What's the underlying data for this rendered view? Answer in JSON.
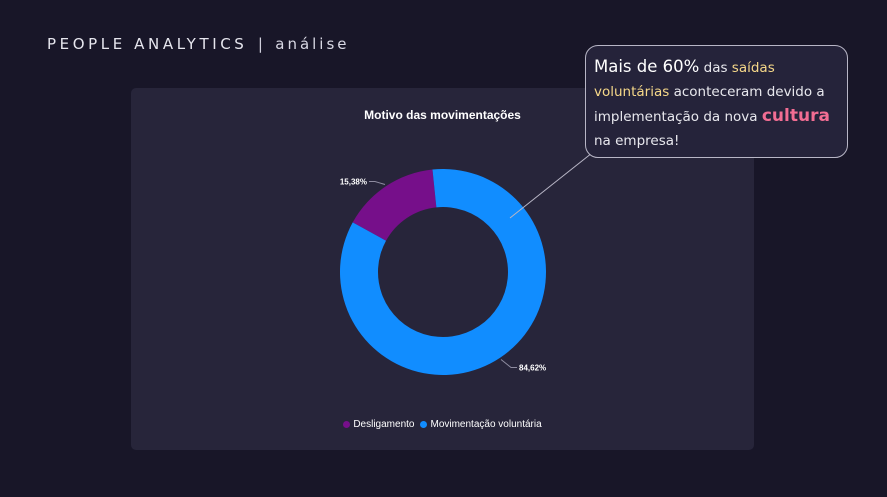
{
  "header": {
    "title": "PEOPLE ANALYTICS",
    "separator": "|",
    "subtitle": "análise"
  },
  "chart_data": {
    "type": "pie",
    "variant": "donut",
    "title": "Motivo das movimentações",
    "categories": [
      "Desligamento",
      "Movimentação voluntária"
    ],
    "values": [
      15.38,
      84.62
    ],
    "data_labels": [
      "15,38%",
      "84,62%"
    ],
    "colors": [
      "#760f8a",
      "#118dff"
    ],
    "legend_position": "bottom-center"
  },
  "callout": {
    "part1": "Mais de 60%",
    "part2": " das ",
    "part3": "saídas voluntárias",
    "part4": " aconteceram devido a implementação da nova ",
    "part5": "cultura",
    "part6": " na empresa!"
  },
  "colors": {
    "background": "#181628",
    "card": "#27253a",
    "highlight": "#f6d889",
    "accent": "#f26d93"
  }
}
